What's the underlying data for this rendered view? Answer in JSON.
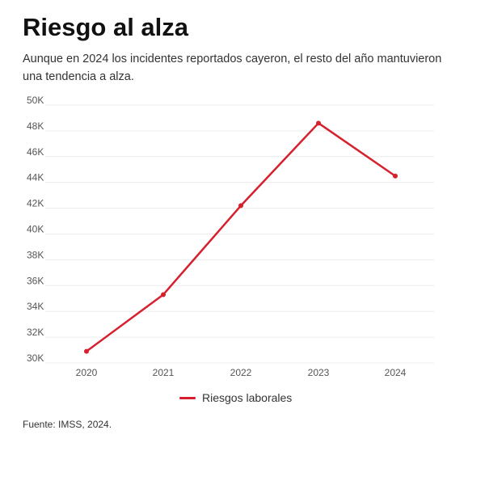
{
  "title": "Riesgo al alza",
  "subtitle": "Aunque en 2024 los incidentes reportados cayeron, el resto del año mantuvieron una tendencia a alza.",
  "source": "Fuente: IMSS, 2024.",
  "colors": {
    "line": "#d7202e",
    "grid": "#ececec"
  },
  "chart_data": {
    "type": "line",
    "title": "Riesgo al alza",
    "xlabel": "",
    "ylabel": "",
    "categories": [
      "2020",
      "2021",
      "2022",
      "2023",
      "2024"
    ],
    "series": [
      {
        "name": "Riesgos laborales",
        "values": [
          30900,
          35300,
          42200,
          48600,
          44500
        ]
      }
    ],
    "ylim": [
      30000,
      50000
    ],
    "yticks": [
      30000,
      32000,
      34000,
      36000,
      38000,
      40000,
      42000,
      44000,
      46000,
      48000,
      50000
    ],
    "ytick_labels": [
      "30K",
      "32K",
      "34K",
      "36K",
      "38K",
      "40K",
      "42K",
      "44K",
      "46K",
      "48K",
      "50K"
    ],
    "grid": true,
    "legend": "bottom-center"
  }
}
